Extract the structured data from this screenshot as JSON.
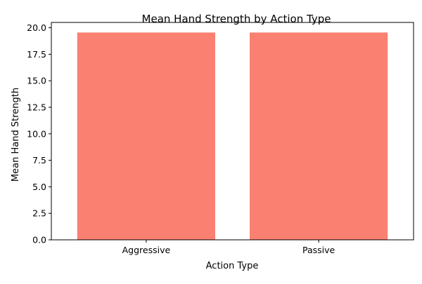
{
  "chart_data": {
    "type": "bar",
    "title": "Mean Hand Strength by Action Type",
    "xlabel": "Action Type",
    "ylabel": "Mean Hand Strength",
    "categories": [
      "Aggressive",
      "Passive"
    ],
    "values": [
      19.55,
      19.55
    ],
    "ylim": [
      0,
      20.5
    ],
    "yticks": [
      "0.0",
      "2.5",
      "5.0",
      "7.5",
      "10.0",
      "12.5",
      "15.0",
      "17.5",
      "20.0"
    ],
    "bar_color": "#fa8072",
    "grid": false,
    "legend": "none"
  }
}
